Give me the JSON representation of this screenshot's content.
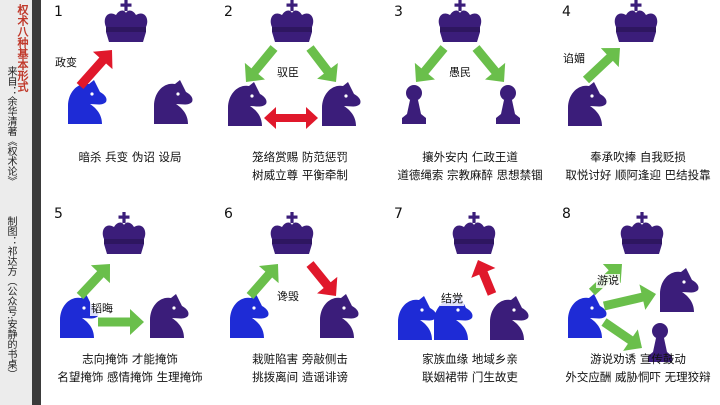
{
  "sidebar": {
    "title": "权术八种基本形式",
    "source": "来自：余华清著《权术论》",
    "maker": "制图：祁达方（公众号:安静的书桌）"
  },
  "colors": {
    "king": "#3b1d7a",
    "knight_blue": "#1e2bd6",
    "red_arrow": "#e0182b",
    "green_arrow": "#6abf4b",
    "stripe": "#3b3b3b"
  },
  "panels": [
    {
      "number": "1",
      "labels": [
        "政变"
      ],
      "caption": [
        "暗杀 兵变 伪诏 设局"
      ]
    },
    {
      "number": "2",
      "labels": [
        "驭臣"
      ],
      "caption": [
        "笼络赏赐 防范惩罚",
        "树威立尊 平衡牵制"
      ]
    },
    {
      "number": "3",
      "labels": [
        "愚民"
      ],
      "caption": [
        "攘外安内 仁政王道",
        "道德绳索 宗教麻醉 思想禁锢"
      ]
    },
    {
      "number": "4",
      "labels": [
        "谄媚"
      ],
      "caption": [
        "奉承吹捧 自我贬损",
        "取悦讨好 顺阿逢迎 巴结投靠"
      ]
    },
    {
      "number": "5",
      "labels": [
        "韬晦"
      ],
      "caption": [
        "志向掩饰 才能掩饰",
        "名望掩饰 感情掩饰 生理掩饰"
      ]
    },
    {
      "number": "6",
      "labels": [
        "谗毁"
      ],
      "caption": [
        "栽赃陷害 旁敲侧击",
        "挑拨离间 造谣诽谤"
      ]
    },
    {
      "number": "7",
      "labels": [
        "结党"
      ],
      "caption": [
        "家族血缘 地域乡亲",
        "联姻裙带 门生故吏"
      ]
    },
    {
      "number": "8",
      "labels": [
        "游说"
      ],
      "caption": [
        "游说劝诱 宣传鼓动",
        "外交应酬 威胁恫吓 无理狡辩"
      ]
    }
  ]
}
